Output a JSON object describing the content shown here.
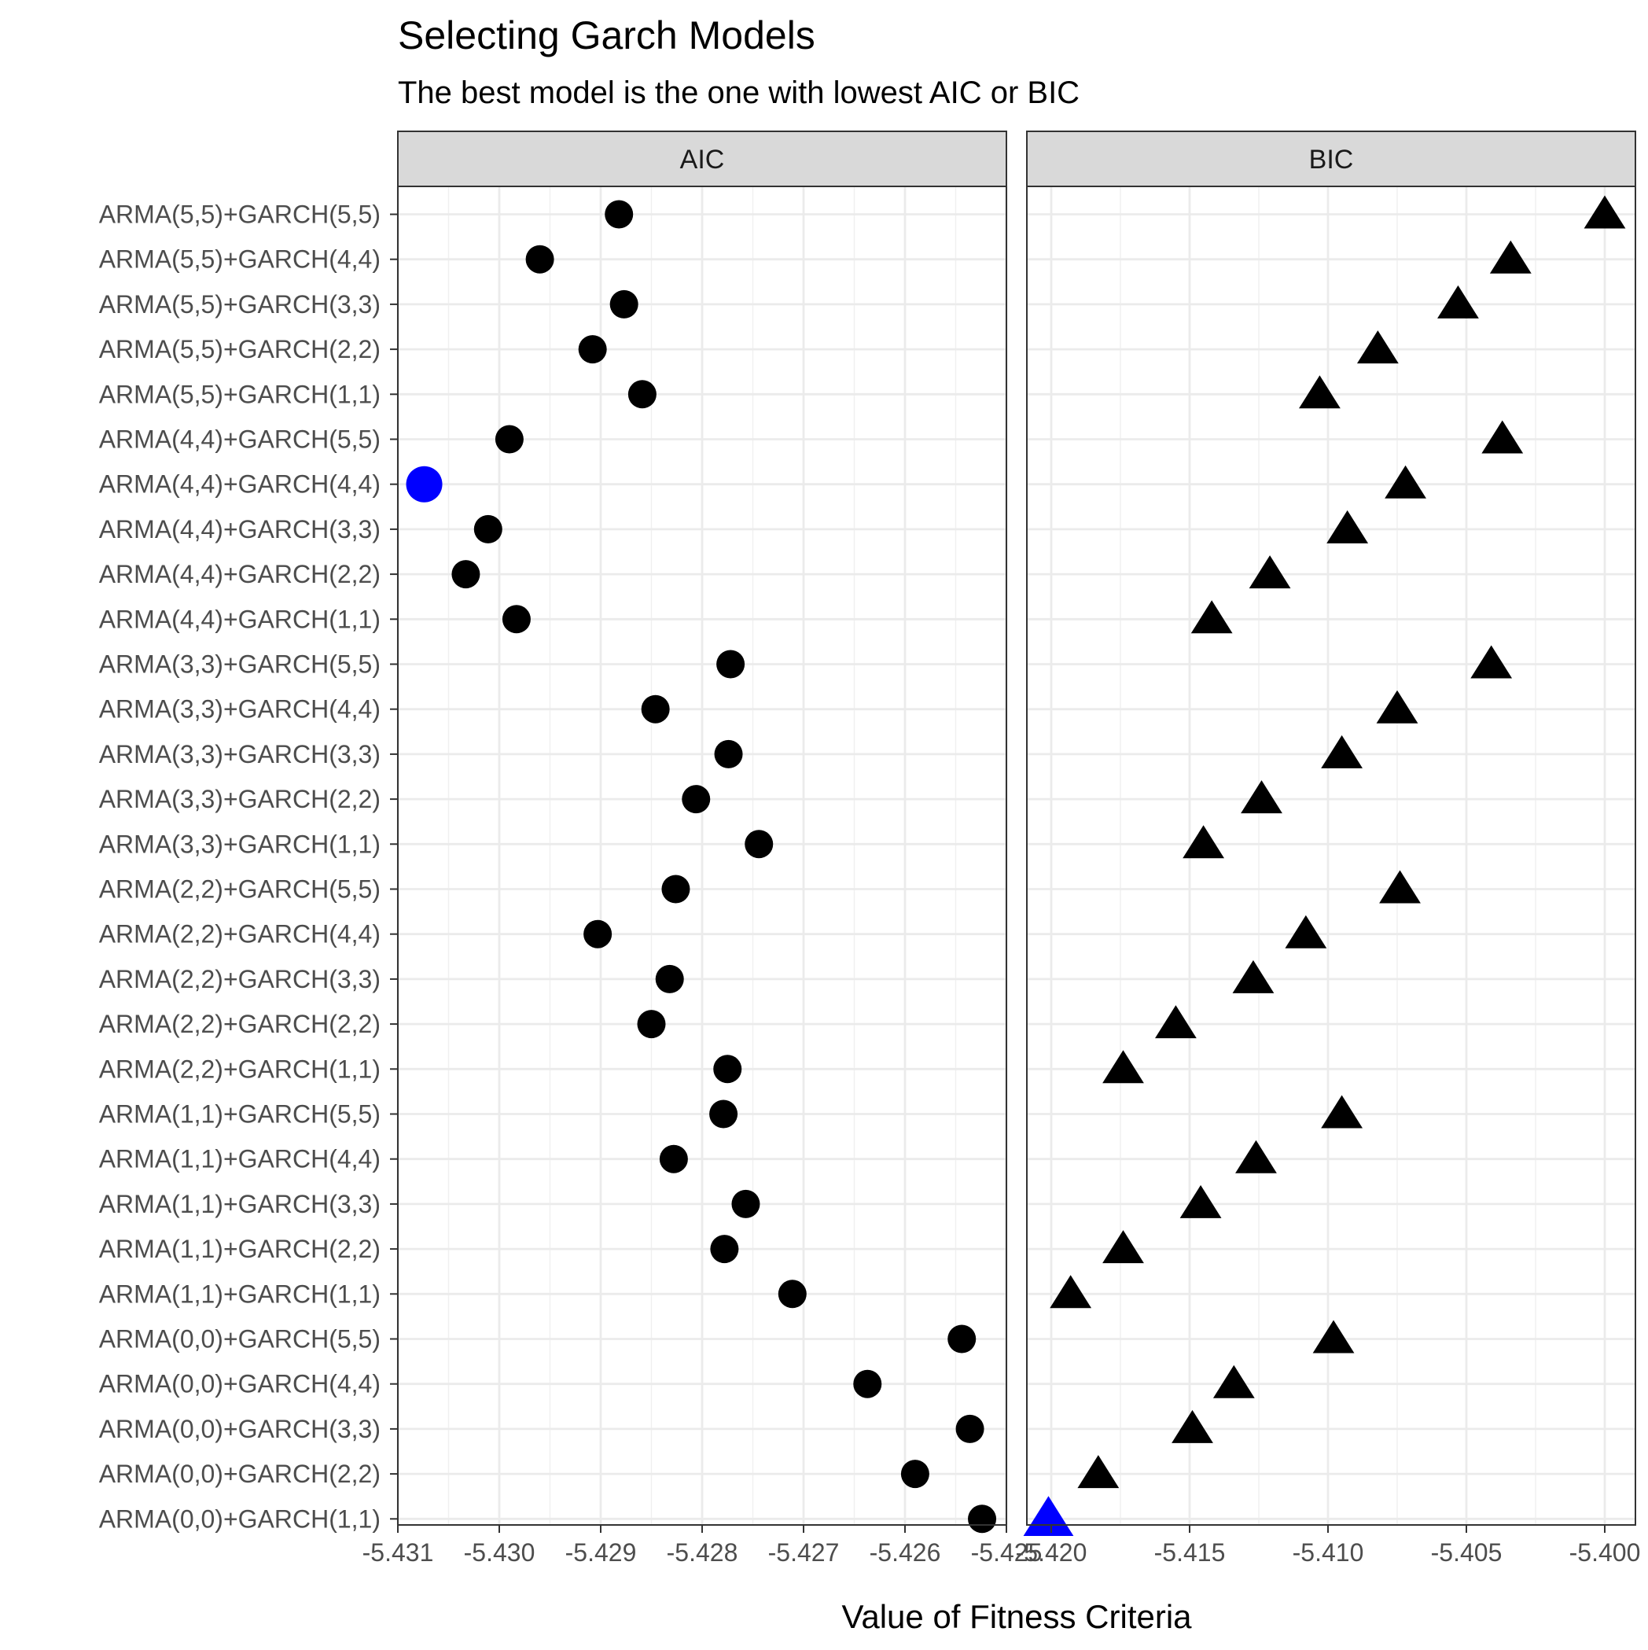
{
  "chart_data": {
    "type": "scatter",
    "title": "Selecting Garch Models",
    "subtitle": "The best model is the one with lowest AIC or BIC",
    "xlabel": "Value of Fitness Criteria",
    "ylabel": "",
    "grid": true,
    "legend": "none",
    "categories": [
      "ARMA(5,5)+GARCH(5,5)",
      "ARMA(5,5)+GARCH(4,4)",
      "ARMA(5,5)+GARCH(3,3)",
      "ARMA(5,5)+GARCH(2,2)",
      "ARMA(5,5)+GARCH(1,1)",
      "ARMA(4,4)+GARCH(5,5)",
      "ARMA(4,4)+GARCH(4,4)",
      "ARMA(4,4)+GARCH(3,3)",
      "ARMA(4,4)+GARCH(2,2)",
      "ARMA(4,4)+GARCH(1,1)",
      "ARMA(3,3)+GARCH(5,5)",
      "ARMA(3,3)+GARCH(4,4)",
      "ARMA(3,3)+GARCH(3,3)",
      "ARMA(3,3)+GARCH(2,2)",
      "ARMA(3,3)+GARCH(1,1)",
      "ARMA(2,2)+GARCH(5,5)",
      "ARMA(2,2)+GARCH(4,4)",
      "ARMA(2,2)+GARCH(3,3)",
      "ARMA(2,2)+GARCH(2,2)",
      "ARMA(2,2)+GARCH(1,1)",
      "ARMA(1,1)+GARCH(5,5)",
      "ARMA(1,1)+GARCH(4,4)",
      "ARMA(1,1)+GARCH(3,3)",
      "ARMA(1,1)+GARCH(2,2)",
      "ARMA(1,1)+GARCH(1,1)",
      "ARMA(0,0)+GARCH(5,5)",
      "ARMA(0,0)+GARCH(4,4)",
      "ARMA(0,0)+GARCH(3,3)",
      "ARMA(0,0)+GARCH(2,2)",
      "ARMA(0,0)+GARCH(1,1)"
    ],
    "panels": [
      {
        "name": "AIC",
        "shape": "circle",
        "xlim": [
          -5.431,
          -5.425
        ],
        "ticks": [
          -5.431,
          -5.43,
          -5.429,
          -5.428,
          -5.427,
          -5.426,
          -5.425
        ],
        "tick_labels": [
          "-5.431",
          "-5.430",
          "-5.429",
          "-5.428",
          "-5.427",
          "-5.426",
          "-5.425"
        ],
        "values": [
          -5.42882,
          -5.4296,
          -5.42877,
          -5.42908,
          -5.42859,
          -5.4299,
          -5.43074,
          -5.43011,
          -5.43033,
          -5.42983,
          -5.42772,
          -5.42846,
          -5.42774,
          -5.42806,
          -5.42744,
          -5.42826,
          -5.42903,
          -5.42832,
          -5.4285,
          -5.42775,
          -5.42779,
          -5.42828,
          -5.42757,
          -5.42778,
          -5.42711,
          -5.42544,
          -5.42637,
          -5.42536,
          -5.4259,
          -5.42524
        ],
        "highlight_index": 6,
        "highlight_color": "#0000ff",
        "point_color": "#000000"
      },
      {
        "name": "BIC",
        "shape": "triangle",
        "xlim": [
          -5.42,
          -5.4
        ],
        "ticks": [
          -5.42,
          -5.415,
          -5.41,
          -5.405,
          -5.4
        ],
        "tick_labels": [
          "-5.420",
          "-5.415",
          "-5.410",
          "-5.405",
          "-5.400"
        ],
        "values": [
          -5.4,
          -5.4034,
          -5.4053,
          -5.4082,
          -5.4103,
          -5.4037,
          -5.4072,
          -5.4093,
          -5.4121,
          -5.4142,
          -5.4041,
          -5.4075,
          -5.4095,
          -5.4124,
          -5.4145,
          -5.4074,
          -5.4108,
          -5.4127,
          -5.4155,
          -5.4174,
          -5.4095,
          -5.4126,
          -5.4146,
          -5.4174,
          -5.4193,
          -5.4098,
          -5.4134,
          -5.4149,
          -5.4183,
          -5.4201
        ],
        "highlight_index": 29,
        "highlight_color": "#0000ff",
        "point_color": "#000000"
      }
    ]
  }
}
